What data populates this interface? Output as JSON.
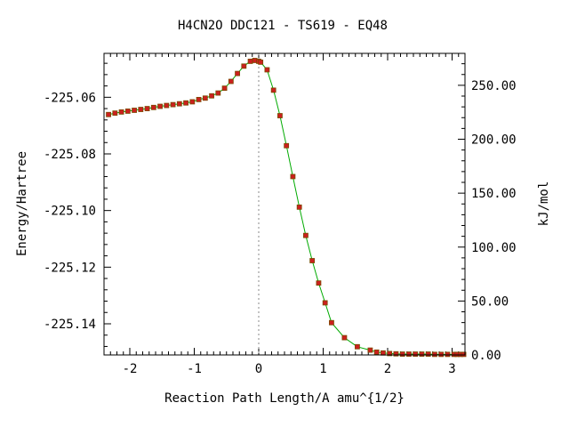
{
  "chart_data": {
    "type": "line",
    "title": "H4CN2O   DDC121 - TS619 - EQ48",
    "xlabel": "Reaction Path Length/A amu^{1/2}",
    "ylabel": "Energy/Hartree",
    "y2label": "kJ/mol",
    "xlim": [
      -2.4,
      3.2
    ],
    "ylim": [
      -225.151,
      -225.0445
    ],
    "y2lim": [
      0,
      279.6
    ],
    "x_ticks": [
      "-2",
      "-1",
      "0",
      "1",
      "2",
      "3"
    ],
    "y_ticks": [
      "-225.06",
      "-225.08",
      "-225.10",
      "-225.12",
      "-225.14"
    ],
    "y2_ticks": [
      "0.00",
      "50.00",
      "100.00",
      "150.00",
      "200.00",
      "250.00"
    ],
    "ts_marker_x": 0,
    "grid": false,
    "colors": {
      "line": "#00aa00",
      "points": "#cc1f1f",
      "point_edge": "#7a4a00",
      "ts_line": "#888888"
    },
    "series": [
      {
        "x": [
          -2.33,
          -2.23,
          -2.13,
          -2.03,
          -1.93,
          -1.83,
          -1.73,
          -1.63,
          -1.53,
          -1.43,
          -1.33,
          -1.23,
          -1.13,
          -1.03,
          -0.93,
          -0.83,
          -0.73,
          -0.63,
          -0.53,
          -0.43,
          -0.33,
          -0.23,
          -0.13,
          -0.06,
          0.0,
          0.03,
          0.13,
          0.23,
          0.33,
          0.43,
          0.53,
          0.63,
          0.73,
          0.83,
          0.93,
          1.03,
          1.13,
          1.33,
          1.53,
          1.73,
          1.83,
          1.93,
          2.03,
          2.13,
          2.23,
          2.33,
          2.43,
          2.53,
          2.63,
          2.73,
          2.83,
          2.93,
          3.03,
          3.08,
          3.13,
          3.18
        ],
        "y": [
          -225.0661,
          -225.0656,
          -225.0652,
          -225.0649,
          -225.0646,
          -225.0643,
          -225.064,
          -225.0636,
          -225.0632,
          -225.0629,
          -225.0626,
          -225.0623,
          -225.062,
          -225.0616,
          -225.0608,
          -225.0603,
          -225.0595,
          -225.0585,
          -225.0568,
          -225.0544,
          -225.0516,
          -225.049,
          -225.0473,
          -225.047,
          -225.0473,
          -225.0476,
          -225.0503,
          -225.0575,
          -225.0665,
          -225.0771,
          -225.088,
          -225.0988,
          -225.1088,
          -225.1177,
          -225.1256,
          -225.1326,
          -225.1396,
          -225.1449,
          -225.1481,
          -225.1493,
          -225.15,
          -225.1503,
          -225.1505,
          -225.1506,
          -225.1507,
          -225.1507,
          -225.1507,
          -225.1507,
          -225.1507,
          -225.1508,
          -225.1508,
          -225.1508,
          -225.1508,
          -225.1508,
          -225.1508,
          -225.1508
        ]
      }
    ]
  }
}
